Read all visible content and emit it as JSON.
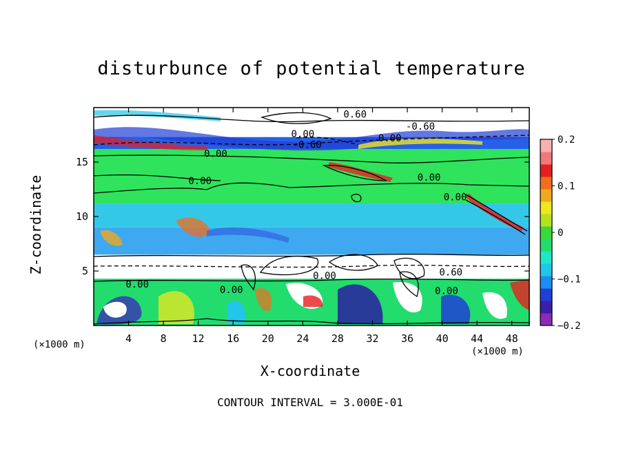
{
  "chart_data": {
    "type": "heatmap",
    "title": "disturbunce of potential temperature",
    "xlabel": "X-coordinate",
    "ylabel": "Z-coordinate",
    "x_unit": "(×1000 m)",
    "footer": "CONTOUR INTERVAL = 3.000E-01",
    "xlim": [
      0,
      50
    ],
    "ylim": [
      0,
      20
    ],
    "x_ticks": [
      4,
      8,
      12,
      16,
      20,
      24,
      28,
      32,
      36,
      40,
      44,
      48
    ],
    "y_ticks": [
      5,
      10,
      15
    ],
    "colorbar": {
      "range": [
        -0.2,
        0.2
      ],
      "tick_values": [
        0.2,
        0.1,
        0,
        -0.1,
        -0.2
      ],
      "tick_labels": [
        "0.2",
        "0.1",
        "0",
        "−0.1",
        "−0.2"
      ],
      "colors": [
        "#8b2bb5",
        "#3b1fa8",
        "#1f3fd6",
        "#1e8cf0",
        "#22c6e8",
        "#1ee8c8",
        "#22dc6e",
        "#3bd83b",
        "#b4e01e",
        "#f0e81e",
        "#f0a81e",
        "#f06e1e",
        "#e81e1e",
        "#f07a7a",
        "#f8b0b0"
      ]
    },
    "bands": [
      {
        "z": [
          0,
          4.3
        ],
        "value": -0.04,
        "color": "#22dc6e"
      },
      {
        "z": [
          4.3,
          6.5
        ],
        "value": 0.2,
        "color": "#ffffff"
      },
      {
        "z": [
          6.5,
          9
        ],
        "value": -0.08,
        "color": "#3ea8f0"
      },
      {
        "z": [
          9,
          11.2
        ],
        "value": -0.06,
        "color": "#34c8e8"
      },
      {
        "z": [
          11.2,
          16.2
        ],
        "value": 0.0,
        "color": "#2fe35c"
      },
      {
        "z": [
          16.2,
          17.3
        ],
        "value": -0.1,
        "color": "#2660e8"
      },
      {
        "z": [
          17.3,
          20
        ],
        "value": 0.2,
        "color": "#ffffff"
      }
    ],
    "contour_labels": [
      {
        "text": "0.60",
        "x": 30.0,
        "z": 19.4
      },
      {
        "text": "-0.60",
        "x": 37.5,
        "z": 18.3
      },
      {
        "text": "0.00",
        "x": 24.0,
        "z": 17.6
      },
      {
        "text": "0.00",
        "x": 34.0,
        "z": 17.2
      },
      {
        "text": "-0.60",
        "x": 24.5,
        "z": 16.6
      },
      {
        "text": "0.00",
        "x": 14.0,
        "z": 15.8
      },
      {
        "text": "0.00",
        "x": 12.2,
        "z": 13.3
      },
      {
        "text": "0.00",
        "x": 38.5,
        "z": 13.6
      },
      {
        "text": "0.00",
        "x": 41.5,
        "z": 11.8
      },
      {
        "text": "0.60",
        "x": 41.0,
        "z": 4.9
      },
      {
        "text": "0.00",
        "x": 26.5,
        "z": 4.6
      },
      {
        "text": "0.00",
        "x": 5.0,
        "z": 3.8
      },
      {
        "text": "0.00",
        "x": 15.8,
        "z": 3.3
      },
      {
        "text": "0.00",
        "x": 40.5,
        "z": 3.2
      }
    ]
  }
}
